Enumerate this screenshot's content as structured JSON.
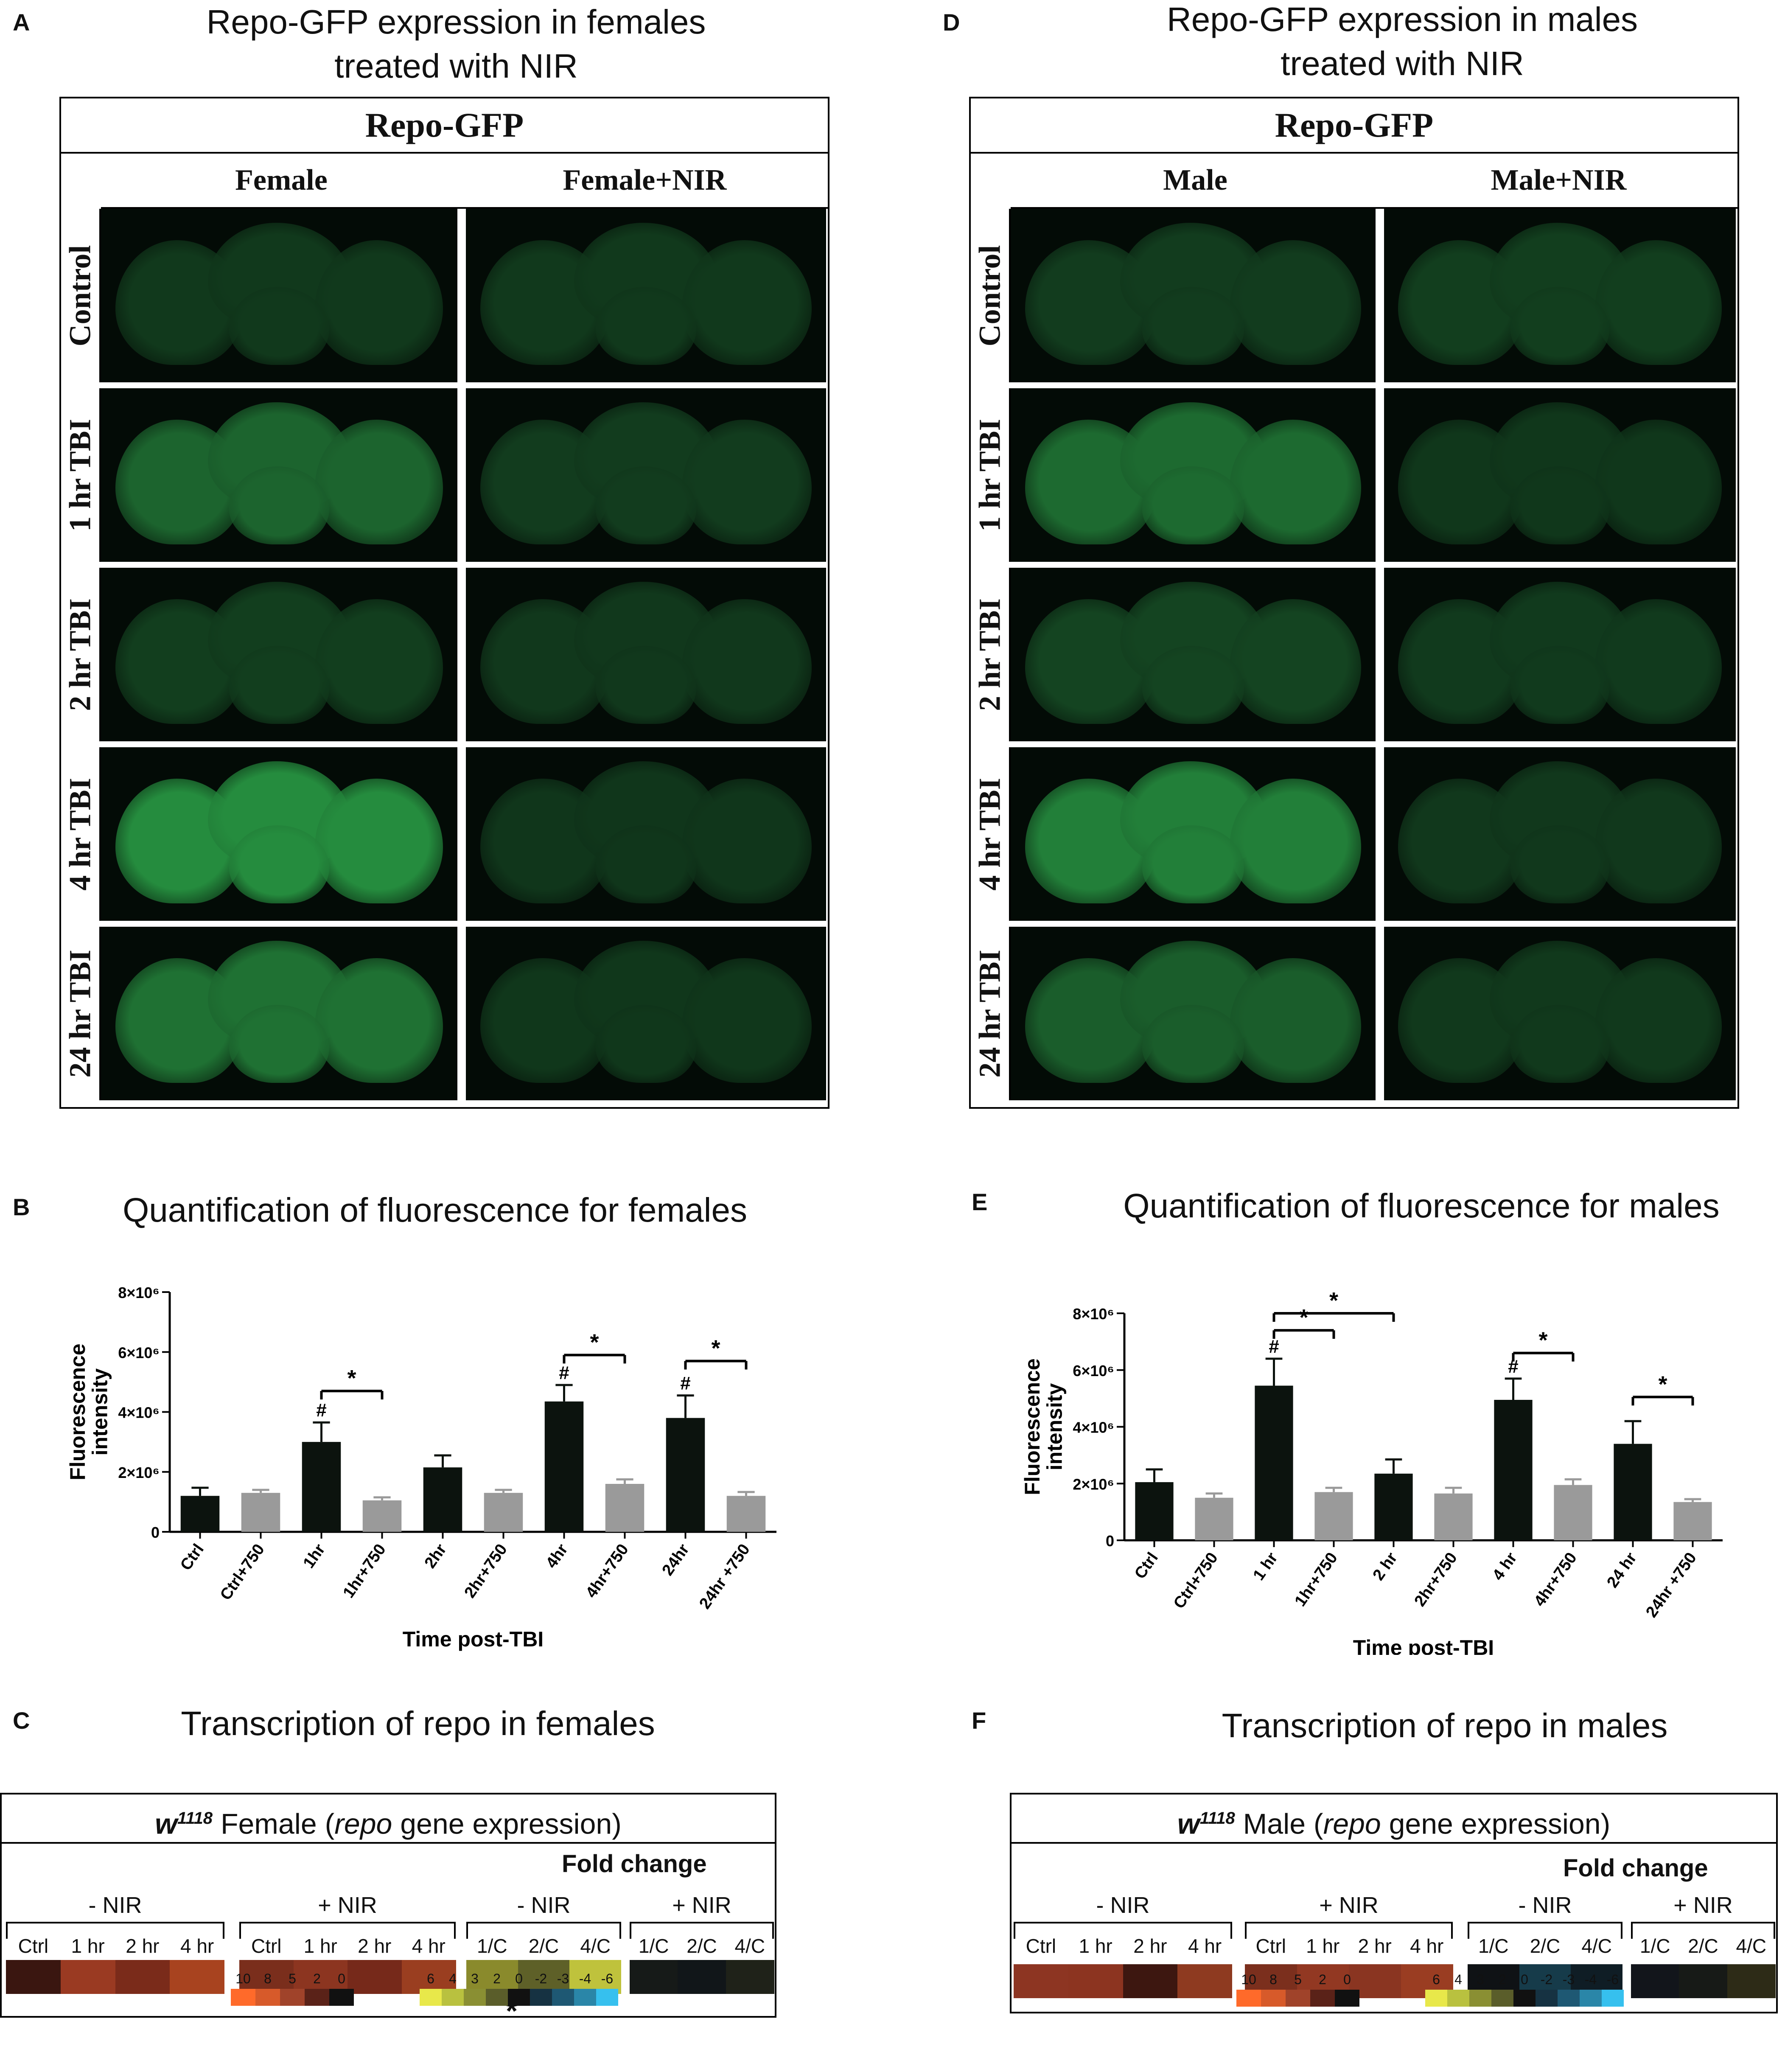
{
  "colors": {
    "bar_tbi": "#0c130e",
    "bar_nir": "#9a9a9a",
    "gfp_dim": "#0d2a16",
    "gfp_mid": "#1a5d2b",
    "gfp_bright": "#2aa046"
  },
  "panels": {
    "A": {
      "letter": "A",
      "title": [
        "Repo-GFP expression in females",
        "treated with NIR"
      ],
      "header": "Repo-GFP",
      "col_headers": [
        "Female",
        "Female+NIR"
      ],
      "row_labels": [
        "Control",
        "1 hr TBI",
        "2 hr TBI",
        "4 hr TBI",
        "24 hr TBI"
      ],
      "intensity_left": [
        0.15,
        0.55,
        0.2,
        0.85,
        0.65
      ],
      "intensity_right": [
        0.15,
        0.18,
        0.14,
        0.12,
        0.13
      ]
    },
    "D": {
      "letter": "D",
      "title": [
        "Repo-GFP expression in males",
        "treated with NIR"
      ],
      "header": "Repo-GFP",
      "col_headers": [
        "Male",
        "Male+NIR"
      ],
      "row_labels": [
        "Control",
        "1 hr TBI",
        "2 hr TBI",
        "4 hr TBI",
        "24 hr TBI"
      ],
      "intensity_left": [
        0.18,
        0.6,
        0.25,
        0.75,
        0.5
      ],
      "intensity_right": [
        0.2,
        0.13,
        0.16,
        0.14,
        0.15
      ]
    },
    "B": {
      "letter": "B",
      "title": "Quantification of fluorescence for females"
    },
    "E": {
      "letter": "E",
      "title": "Quantification of fluorescence for males"
    },
    "C": {
      "letter": "C",
      "title": "Transcription of repo in females",
      "box_title_sup": "w",
      "box_title_sup_num": "1118",
      "box_title_rest": " Female (",
      "box_title_gene": "repo",
      "box_title_end": " gene expression)",
      "fold_label": "Fold change",
      "groups": [
        "- NIR",
        "+ NIR",
        "- NIR",
        "+ NIR"
      ],
      "cols": [
        [
          "Ctrl",
          "1 hr",
          "2 hr",
          "4 hr"
        ],
        [
          "Ctrl",
          "1 hr",
          "2 hr",
          "4 hr"
        ],
        [
          "1/C",
          "2/C",
          "4/C"
        ],
        [
          "1/C",
          "2/C",
          "4/C"
        ]
      ],
      "cells": [
        [
          "#3a1610",
          "#9a3a22",
          "#7a2b1a",
          "#a8431f"
        ],
        [
          "#7a2e1c",
          "#8c3520",
          "#76291a",
          "#9a3e20"
        ],
        [
          "#8a8a2c",
          "#5e6028",
          "#bfc23c"
        ],
        [
          "#161a18",
          "#111619",
          "#1f2219"
        ]
      ],
      "star": "*",
      "key_red_labels": [
        "10",
        "8",
        "5",
        "2",
        "0"
      ],
      "key_red_colors": [
        "#ff6a2a",
        "#d75a2a",
        "#a0432a",
        "#5a2218",
        "#111111"
      ],
      "key_yb_labels": [
        "6",
        "4",
        "3",
        "2",
        "0",
        "-2",
        "-3",
        "-4",
        "-6"
      ],
      "key_yb_colors": [
        "#e8e84a",
        "#b9c13f",
        "#8a8f33",
        "#5a5d2a",
        "#111111",
        "#163242",
        "#1e5873",
        "#2a86a8",
        "#36c0ee"
      ]
    },
    "F": {
      "letter": "F",
      "title": "Transcription of repo in males",
      "box_title_sup": "w",
      "box_title_sup_num": "1118",
      "box_title_rest": " Male (",
      "box_title_gene": "repo",
      "box_title_end": " gene expression)",
      "fold_label": "Fold change",
      "groups": [
        "- NIR",
        "+ NIR",
        "- NIR",
        "+ NIR"
      ],
      "cols": [
        [
          "Ctrl",
          "1 hr",
          "2 hr",
          "4 hr"
        ],
        [
          "Ctrl",
          "1 hr",
          "2 hr",
          "4 hr"
        ],
        [
          "1/C",
          "2/C",
          "4/C"
        ],
        [
          "1/C",
          "2/C",
          "4/C"
        ]
      ],
      "cells": [
        [
          "#8d3522",
          "#8c3420",
          "#3d1710",
          "#8e3a20"
        ],
        [
          "#7b2f1d",
          "#923822",
          "#8a3521",
          "#9a3d22"
        ],
        [
          "#0f1215",
          "#163b4a",
          "#0f1d25"
        ],
        [
          "#12151b",
          "#171a17",
          "#2d2b17"
        ]
      ],
      "star": "*",
      "key_red_labels": [
        "10",
        "8",
        "5",
        "2",
        "0"
      ],
      "key_red_colors": [
        "#ff6a2a",
        "#d75a2a",
        "#a0432a",
        "#5a2218",
        "#111111"
      ],
      "key_yb_labels": [
        "6",
        "4",
        "3",
        "2",
        "0",
        "-2",
        "-3",
        "-4",
        "-6"
      ],
      "key_yb_colors": [
        "#e8e84a",
        "#b9c13f",
        "#8a8f33",
        "#5a5d2a",
        "#111111",
        "#163242",
        "#1e5873",
        "#2a86a8",
        "#36c0ee"
      ]
    }
  },
  "chart_data": [
    {
      "type": "bar",
      "panel": "B",
      "title": "Quantification of fluorescence for females",
      "xlabel": "Time post-TBI",
      "ylabel": "Fluorescence intensity",
      "ylim": [
        0,
        8000000
      ],
      "yticks": [
        "0",
        "2×10⁶",
        "4×10⁶",
        "6×10⁶",
        "8×10⁶"
      ],
      "ytick_values": [
        0,
        2000000,
        4000000,
        6000000,
        8000000
      ],
      "categories": [
        "Ctrl",
        "Ctrl+750",
        "1hr",
        "1hr+750",
        "2hr",
        "2hr+750",
        "4hr",
        "4hr+750",
        "24hr",
        "24hr +750"
      ],
      "values": [
        1200000,
        1300000,
        3000000,
        1050000,
        2150000,
        1300000,
        4350000,
        1600000,
        3800000,
        1200000
      ],
      "errors": [
        270000,
        100000,
        650000,
        100000,
        400000,
        100000,
        550000,
        150000,
        750000,
        130000
      ],
      "bar_color_index": [
        0,
        1,
        0,
        1,
        0,
        1,
        0,
        1,
        0,
        1
      ],
      "hash_marks": [
        2,
        6,
        8
      ],
      "hash_label": "#",
      "significance": [
        {
          "from": 2,
          "to": 3,
          "y": 4700000,
          "label": "*"
        },
        {
          "from": 6,
          "to": 7,
          "y": 5900000,
          "label": "*"
        },
        {
          "from": 8,
          "to": 9,
          "y": 5700000,
          "label": "*"
        }
      ]
    },
    {
      "type": "bar",
      "panel": "E",
      "title": "Quantification of fluorescence for males",
      "xlabel": "Time post-TBI",
      "ylabel": "Fluorescence intensity",
      "ylim": [
        0,
        8000000
      ],
      "yticks": [
        "0",
        "2×10⁶",
        "4×10⁶",
        "6×10⁶",
        "8×10⁶"
      ],
      "ytick_values": [
        0,
        2000000,
        4000000,
        6000000,
        8000000
      ],
      "categories": [
        "Ctrl",
        "Ctrl+750",
        "1 hr",
        "1hr+750",
        "2 hr",
        "2hr+750",
        "4 hr",
        "4hr+750",
        "24 hr",
        "24hr +750"
      ],
      "values": [
        2050000,
        1500000,
        5450000,
        1700000,
        2350000,
        1650000,
        4950000,
        1950000,
        3400000,
        1350000
      ],
      "errors": [
        450000,
        150000,
        950000,
        150000,
        500000,
        200000,
        750000,
        200000,
        800000,
        100000
      ],
      "bar_color_index": [
        0,
        1,
        0,
        1,
        0,
        1,
        0,
        1,
        0,
        1
      ],
      "hash_marks": [
        2,
        6
      ],
      "hash_label": "#",
      "significance": [
        {
          "from": 2,
          "to": 3,
          "y": 7400000,
          "label": "*"
        },
        {
          "from": 2,
          "to": 4,
          "y": 8000000,
          "label": "*"
        },
        {
          "from": 6,
          "to": 7,
          "y": 6600000,
          "label": "*"
        },
        {
          "from": 8,
          "to": 9,
          "y": 5050000,
          "label": "*"
        }
      ]
    }
  ]
}
